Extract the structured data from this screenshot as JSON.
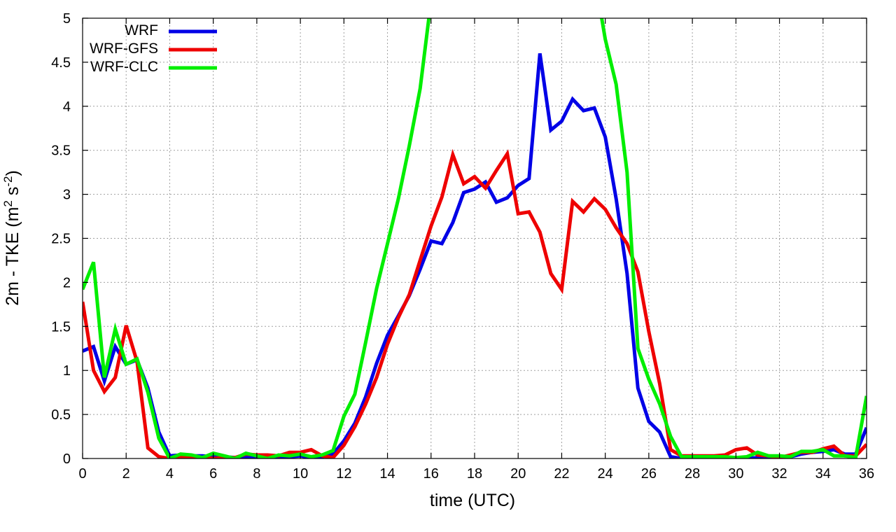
{
  "chart_data": {
    "type": "line",
    "xlabel": "time (UTC)",
    "ylabel_parts": [
      "2m - TKE (m",
      "2",
      " s",
      "-2",
      ")"
    ],
    "xlim": [
      0,
      36
    ],
    "ylim": [
      0,
      5
    ],
    "xticks": [
      0,
      2,
      4,
      6,
      8,
      10,
      12,
      14,
      16,
      18,
      20,
      22,
      24,
      26,
      28,
      30,
      32,
      34,
      36
    ],
    "yticks": [
      0,
      0.5,
      1,
      1.5,
      2,
      2.5,
      3,
      3.5,
      4,
      4.5,
      5
    ],
    "ytick_labels": [
      "0",
      "0.5",
      "1",
      "1.5",
      "2",
      "2.5",
      "3",
      "3.5",
      "4",
      "4.5",
      "5"
    ],
    "grid": true,
    "legend_position": "top-left",
    "series": [
      {
        "name": "WRF",
        "color": "#0000e6",
        "points": [
          [
            0,
            1.22
          ],
          [
            0.5,
            1.27
          ],
          [
            1,
            0.88
          ],
          [
            1.5,
            1.27
          ],
          [
            2,
            1.07
          ],
          [
            2.5,
            1.12
          ],
          [
            3,
            0.8
          ],
          [
            3.5,
            0.3
          ],
          [
            4,
            0.03
          ],
          [
            4.5,
            0.04
          ],
          [
            5,
            0.03
          ],
          [
            5.5,
            0.03
          ],
          [
            6,
            0.02
          ],
          [
            6.5,
            0.02
          ],
          [
            7,
            0.01
          ],
          [
            7.5,
            0.02
          ],
          [
            8,
            0.02
          ],
          [
            8.5,
            0.02
          ],
          [
            9,
            0.02
          ],
          [
            9.5,
            0.02
          ],
          [
            10,
            0.03
          ],
          [
            10.5,
            0.01
          ],
          [
            11,
            0.02
          ],
          [
            11.5,
            0.05
          ],
          [
            12,
            0.2
          ],
          [
            12.5,
            0.4
          ],
          [
            13,
            0.7
          ],
          [
            13.5,
            1.08
          ],
          [
            14,
            1.4
          ],
          [
            14.5,
            1.62
          ],
          [
            15,
            1.85
          ],
          [
            15.5,
            2.15
          ],
          [
            16,
            2.47
          ],
          [
            16.5,
            2.44
          ],
          [
            17,
            2.68
          ],
          [
            17.5,
            3.02
          ],
          [
            18,
            3.06
          ],
          [
            18.5,
            3.14
          ],
          [
            19,
            2.91
          ],
          [
            19.5,
            2.96
          ],
          [
            20,
            3.1
          ],
          [
            20.5,
            3.18
          ],
          [
            21,
            4.6
          ],
          [
            21.5,
            3.73
          ],
          [
            22,
            3.83
          ],
          [
            22.5,
            4.08
          ],
          [
            23,
            3.95
          ],
          [
            23.5,
            3.98
          ],
          [
            24,
            3.65
          ],
          [
            24.5,
            2.95
          ],
          [
            25,
            2.1
          ],
          [
            25.5,
            0.8
          ],
          [
            26,
            0.42
          ],
          [
            26.5,
            0.3
          ],
          [
            27,
            0.02
          ],
          [
            27.5,
            0.0
          ],
          [
            28,
            0.01
          ],
          [
            28.5,
            0.01
          ],
          [
            29,
            0.0
          ],
          [
            29.5,
            0.0
          ],
          [
            30,
            0.0
          ],
          [
            30.5,
            0.0
          ],
          [
            31,
            0.01
          ],
          [
            31.5,
            0.01
          ],
          [
            32,
            0.01
          ],
          [
            32.5,
            0.02
          ],
          [
            33,
            0.05
          ],
          [
            33.5,
            0.07
          ],
          [
            34,
            0.08
          ],
          [
            34.5,
            0.1
          ],
          [
            35,
            0.05
          ],
          [
            35.5,
            0.05
          ],
          [
            36,
            0.35
          ]
        ]
      },
      {
        "name": "WRF-GFS",
        "color": "#ee0000",
        "points": [
          [
            0,
            1.78
          ],
          [
            0.5,
            1.0
          ],
          [
            1,
            0.76
          ],
          [
            1.5,
            0.92
          ],
          [
            2,
            1.51
          ],
          [
            2.5,
            1.1
          ],
          [
            3,
            0.12
          ],
          [
            3.5,
            0.02
          ],
          [
            4,
            0.0
          ],
          [
            4.5,
            0.02
          ],
          [
            5,
            0.01
          ],
          [
            5.5,
            0.01
          ],
          [
            6,
            0.0
          ],
          [
            6.5,
            0.01
          ],
          [
            7,
            0.01
          ],
          [
            7.5,
            0.05
          ],
          [
            8,
            0.04
          ],
          [
            8.5,
            0.04
          ],
          [
            9,
            0.03
          ],
          [
            9.5,
            0.07
          ],
          [
            10,
            0.07
          ],
          [
            10.5,
            0.1
          ],
          [
            11,
            0.03
          ],
          [
            11.5,
            0.01
          ],
          [
            12,
            0.15
          ],
          [
            12.5,
            0.36
          ],
          [
            13,
            0.62
          ],
          [
            13.5,
            0.92
          ],
          [
            14,
            1.3
          ],
          [
            14.5,
            1.6
          ],
          [
            15,
            1.86
          ],
          [
            15.5,
            2.25
          ],
          [
            16,
            2.64
          ],
          [
            16.5,
            2.97
          ],
          [
            17,
            3.45
          ],
          [
            17.5,
            3.12
          ],
          [
            18,
            3.2
          ],
          [
            18.5,
            3.07
          ],
          [
            19,
            3.27
          ],
          [
            19.5,
            3.46
          ],
          [
            20,
            2.78
          ],
          [
            20.5,
            2.8
          ],
          [
            21,
            2.57
          ],
          [
            21.5,
            2.1
          ],
          [
            22,
            1.92
          ],
          [
            22.5,
            2.92
          ],
          [
            23,
            2.8
          ],
          [
            23.5,
            2.95
          ],
          [
            24,
            2.83
          ],
          [
            24.5,
            2.62
          ],
          [
            25,
            2.44
          ],
          [
            25.5,
            2.12
          ],
          [
            26,
            1.44
          ],
          [
            26.5,
            0.85
          ],
          [
            27,
            0.1
          ],
          [
            27.5,
            0.03
          ],
          [
            28,
            0.03
          ],
          [
            28.5,
            0.03
          ],
          [
            29,
            0.03
          ],
          [
            29.5,
            0.04
          ],
          [
            30,
            0.1
          ],
          [
            30.5,
            0.12
          ],
          [
            31,
            0.04
          ],
          [
            31.5,
            0.03
          ],
          [
            32,
            0.01
          ],
          [
            32.5,
            0.04
          ],
          [
            33,
            0.07
          ],
          [
            33.5,
            0.07
          ],
          [
            34,
            0.11
          ],
          [
            34.5,
            0.14
          ],
          [
            35,
            0.03
          ],
          [
            35.5,
            0.03
          ],
          [
            36,
            0.16
          ]
        ]
      },
      {
        "name": "WRF-CLC",
        "color": "#00ee00",
        "points": [
          [
            0,
            1.92
          ],
          [
            0.5,
            2.23
          ],
          [
            1,
            0.92
          ],
          [
            1.5,
            1.47
          ],
          [
            2,
            1.07
          ],
          [
            2.5,
            1.13
          ],
          [
            3,
            0.75
          ],
          [
            3.5,
            0.23
          ],
          [
            4,
            0.0
          ],
          [
            4.5,
            0.05
          ],
          [
            5,
            0.04
          ],
          [
            5.5,
            0.01
          ],
          [
            6,
            0.06
          ],
          [
            6.5,
            0.03
          ],
          [
            7,
            0.0
          ],
          [
            7.5,
            0.06
          ],
          [
            8,
            0.03
          ],
          [
            8.5,
            0.0
          ],
          [
            9,
            0.04
          ],
          [
            9.5,
            0.03
          ],
          [
            10,
            0.05
          ],
          [
            10.5,
            0.02
          ],
          [
            11,
            0.04
          ],
          [
            11.5,
            0.09
          ],
          [
            12,
            0.48
          ],
          [
            12.5,
            0.73
          ],
          [
            13,
            1.32
          ],
          [
            13.5,
            1.93
          ],
          [
            14,
            2.44
          ],
          [
            14.5,
            2.95
          ],
          [
            15,
            3.55
          ],
          [
            15.5,
            4.2
          ],
          [
            16,
            5.2
          ],
          [
            23.7,
            5.2
          ],
          [
            24,
            4.76
          ],
          [
            24.5,
            4.25
          ],
          [
            25,
            3.25
          ],
          [
            25.5,
            1.25
          ],
          [
            26,
            0.9
          ],
          [
            26.5,
            0.62
          ],
          [
            27,
            0.25
          ],
          [
            27.5,
            0.02
          ],
          [
            28,
            0.02
          ],
          [
            28.5,
            0.02
          ],
          [
            29,
            0.02
          ],
          [
            29.5,
            0.02
          ],
          [
            30,
            0.01
          ],
          [
            30.5,
            0.02
          ],
          [
            31,
            0.07
          ],
          [
            31.5,
            0.03
          ],
          [
            32,
            0.03
          ],
          [
            32.5,
            0.02
          ],
          [
            33,
            0.08
          ],
          [
            33.5,
            0.08
          ],
          [
            34,
            0.1
          ],
          [
            34.5,
            0.03
          ],
          [
            35,
            0.03
          ],
          [
            35.5,
            0.01
          ],
          [
            36,
            0.71
          ]
        ]
      }
    ]
  }
}
